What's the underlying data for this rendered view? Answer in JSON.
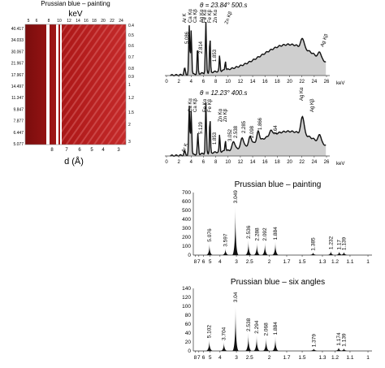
{
  "heatmap_panel": {
    "title": "Prussian blue – painting",
    "top_axis_label": "keV",
    "top_ticks": [
      "5",
      "6",
      "8",
      "10",
      "12",
      "14",
      "16",
      "18",
      "20",
      "22",
      "24"
    ],
    "left_ticks": [
      "40.417",
      "34.033",
      "30.067",
      "21.967",
      "17.967",
      "14.497",
      "11.347",
      "9.847",
      "7.877",
      "6.447",
      "5.077"
    ],
    "right_ticks": [
      "0.4",
      "0.5",
      "0.6",
      "0.7",
      "0.8",
      "0.9",
      "1",
      "1.2",
      "1.5",
      "2",
      "3"
    ],
    "bottom_ticks": [
      "8",
      "7",
      "6",
      "5",
      "4",
      "3"
    ],
    "bottom_axis_label": "d (Å)"
  },
  "spectrum_top": {
    "title": "θ = 23.84° 500.s",
    "xlabel": "keV",
    "xticks": [
      "0",
      "2",
      "4",
      "6",
      "8",
      "10",
      "12",
      "14",
      "16",
      "18",
      "20",
      "22",
      "24",
      "26"
    ],
    "labels": [
      "Ca Kα",
      "Ca Kβ",
      "Ag Kα",
      "Ar K",
      "Fe Kα",
      "Fe Kβ",
      "Zn Kα",
      "Zn Kβ",
      "Ag Kβ",
      "5.086",
      "2.814",
      "1.853"
    ]
  },
  "spectrum_bottom": {
    "title": "θ = 12.23° 400.s",
    "xlabel": "keV",
    "xticks": [
      "0",
      "2",
      "4",
      "6",
      "8",
      "10",
      "12",
      "14",
      "16",
      "18",
      "20",
      "22",
      "24",
      "26"
    ],
    "labels": [
      "Ca Kα",
      "Ca Kβ",
      "Ag Kα",
      "Ar K",
      "Fe Kα",
      "Fe Kβ",
      "Zn Kα",
      "Zn Kβ",
      "Ag Kβ",
      "5.129",
      "3.052",
      "1.853",
      "2.538",
      "2.285",
      "2.098",
      "1.866",
      "1.64"
    ]
  },
  "chart_data": [
    {
      "type": "bar",
      "title": "Prussian blue – painting",
      "ylim": [
        0,
        700
      ],
      "yticks": [
        "0",
        "100",
        "200",
        "300",
        "400",
        "500",
        "600",
        "700"
      ],
      "xticks": [
        "8",
        "7",
        "6",
        "5",
        "4",
        "3",
        "2.5",
        "2",
        "1.7",
        "1.5",
        "1.3",
        "1.2",
        "1.1",
        "1"
      ],
      "peaks": [
        {
          "d": 5.076,
          "intensity": 130,
          "label": "5.076"
        },
        {
          "d": 3.597,
          "intensity": 75,
          "label": "3.597"
        },
        {
          "d": 3.049,
          "intensity": 560,
          "label": "3.049"
        },
        {
          "d": 2.536,
          "intensity": 165,
          "label": "2.536"
        },
        {
          "d": 2.288,
          "intensity": 140,
          "label": "2.288"
        },
        {
          "d": 2.092,
          "intensity": 140,
          "label": "2.092"
        },
        {
          "d": 1.884,
          "intensity": 150,
          "label": "1.884"
        },
        {
          "d": 1.385,
          "intensity": 30,
          "label": "1.385"
        },
        {
          "d": 1.232,
          "intensity": 45,
          "label": "1.232"
        },
        {
          "d": 1.17,
          "intensity": 40,
          "label": "1.17"
        },
        {
          "d": 1.139,
          "intensity": 35,
          "label": "1.139"
        }
      ]
    },
    {
      "type": "bar",
      "title": "Prussian blue – six angles",
      "ylim": [
        0,
        140
      ],
      "yticks": [
        "0",
        "20",
        "40",
        "60",
        "80",
        "100",
        "120",
        "140"
      ],
      "xticks": [
        "8",
        "7",
        "6",
        "5",
        "4",
        "3",
        "2.5",
        "2",
        "1.7",
        "1.5",
        "1.3",
        "1.2",
        "1.1",
        "1"
      ],
      "peaks": [
        {
          "d": 5.102,
          "intensity": 25,
          "label": "5.102"
        },
        {
          "d": 3.704,
          "intensity": 20,
          "label": "3.704"
        },
        {
          "d": 3.04,
          "intensity": 105,
          "label": "3.04"
        },
        {
          "d": 2.538,
          "intensity": 40,
          "label": "2.538"
        },
        {
          "d": 2.294,
          "intensity": 35,
          "label": "2.294"
        },
        {
          "d": 2.068,
          "intensity": 30,
          "label": "2.068"
        },
        {
          "d": 1.884,
          "intensity": 32,
          "label": "1.884"
        },
        {
          "d": 1.379,
          "intensity": 5,
          "label": "1.379"
        },
        {
          "d": 1.174,
          "intensity": 8,
          "label": "1.174"
        },
        {
          "d": 1.139,
          "intensity": 6,
          "label": "1.139"
        }
      ]
    }
  ]
}
